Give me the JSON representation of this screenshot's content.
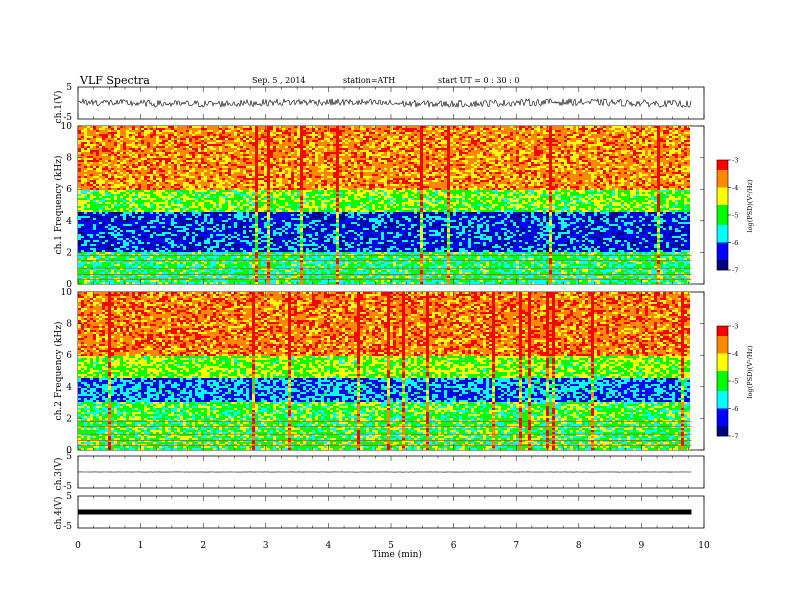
{
  "header": {
    "title": "VLF Spectra",
    "date": "Sep. 5 , 2014",
    "station": "station=ATH",
    "start": "start UT = 0 : 30 : 0"
  },
  "colors": {
    "spectrogram_scale": [
      "#000080",
      "#0000ff",
      "#00ffff",
      "#00ff00",
      "#ffff00",
      "#ff8800",
      "#ff0000",
      "#ffffff"
    ]
  },
  "chart_data": {
    "type": "heatmap",
    "xlabel": "Time (min)",
    "xlim": [
      0,
      10
    ],
    "x_ticks": [
      "0",
      "1",
      "2",
      "3",
      "4",
      "5",
      "6",
      "7",
      "8",
      "9",
      "10"
    ],
    "data_end_min": 9.8,
    "panels": [
      {
        "id": "ch1_waveform",
        "type": "line",
        "ylabel": "ch.1(V)",
        "ylim": [
          -5,
          5
        ],
        "y_ticks": [
          "5",
          "-5"
        ],
        "trace": "noisy waveform, amplitude about ±1 V"
      },
      {
        "id": "ch1_spectrogram",
        "type": "heatmap",
        "ylabel": "ch.1 Frequency (kHz)",
        "ylim": [
          0,
          10
        ],
        "y_ticks": [
          "0",
          "2",
          "4",
          "6",
          "8",
          "10"
        ],
        "colorbar": {
          "label": "log(PSD)(V²/Hz)",
          "range": [
            -7,
            -3
          ],
          "ticks": [
            "-3",
            "-4",
            "-5",
            "-6",
            "-7"
          ]
        },
        "bands": [
          {
            "freq_khz": [
              6,
              10
            ],
            "log_psd": -3.7
          },
          {
            "freq_khz": [
              4.5,
              6
            ],
            "log_psd": -4.8
          },
          {
            "freq_khz": [
              2,
              4.5
            ],
            "log_psd": -6.3
          },
          {
            "freq_khz": [
              0,
              2
            ],
            "log_psd": -5.2
          }
        ]
      },
      {
        "id": "ch2_spectrogram",
        "type": "heatmap",
        "ylabel": "ch.2 Frequency (kHz)",
        "ylim": [
          0,
          10
        ],
        "y_ticks": [
          "0",
          "2",
          "4",
          "6",
          "8",
          "10"
        ],
        "colorbar": {
          "label": "log(PSD)(V²/Hz)",
          "range": [
            -7,
            -3
          ],
          "ticks": [
            "-3",
            "-4",
            "-5",
            "-6",
            "-7"
          ]
        },
        "bands": [
          {
            "freq_khz": [
              6,
              10
            ],
            "log_psd": -3.6
          },
          {
            "freq_khz": [
              4.5,
              6
            ],
            "log_psd": -4.7
          },
          {
            "freq_khz": [
              3,
              4.5
            ],
            "log_psd": -6.0
          },
          {
            "freq_khz": [
              0,
              3
            ],
            "log_psd": -5.0
          }
        ]
      },
      {
        "id": "ch3_waveform",
        "type": "line",
        "ylabel": "ch.3(V)",
        "ylim": [
          -5,
          5
        ],
        "y_ticks": [
          "5",
          "-5"
        ],
        "trace": "flat line near 0 V"
      },
      {
        "id": "ch4_waveform",
        "type": "line",
        "ylabel": "ch.4(V)",
        "ylim": [
          -5,
          5
        ],
        "y_ticks": [
          "5",
          "-5"
        ],
        "trace": "thick flat band near 0 V"
      }
    ]
  }
}
